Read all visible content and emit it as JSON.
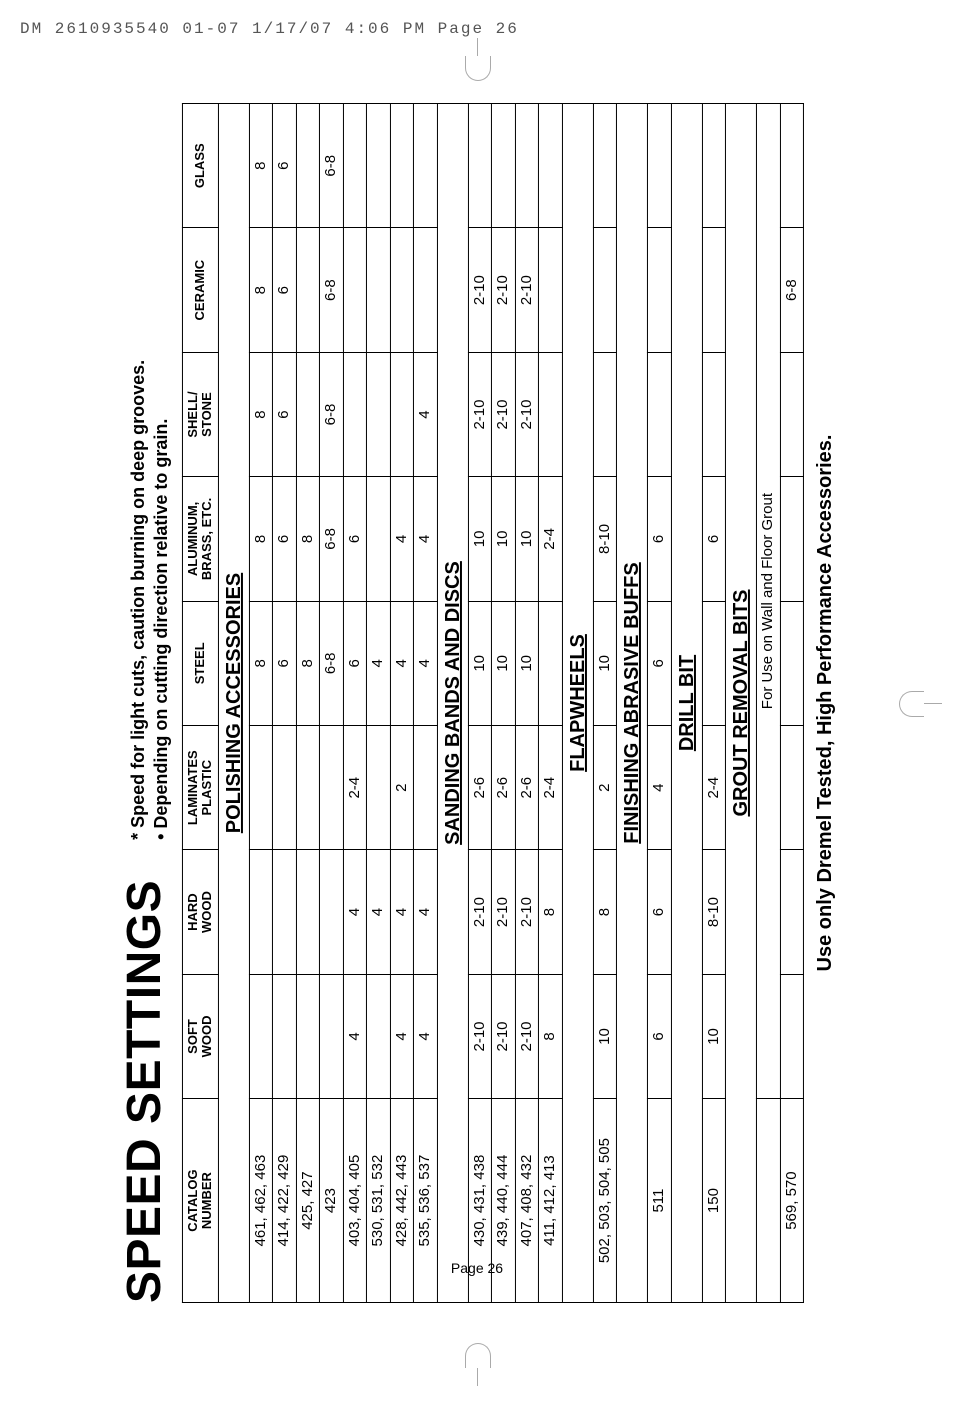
{
  "header": {
    "left": "DM 2610935540 01-07  1/17/07  4:06 PM  Page 26",
    "page_label": "Page 26"
  },
  "title": "SPEED SETTINGS",
  "subtitle_line1": "* Speed for light cuts, caution burning on deep grooves.",
  "subtitle_line2": "• Depending on cutting direction relative to grain.",
  "columns": {
    "catalog": "CATALOG\nNUMBER",
    "soft": "SOFT\nWOOD",
    "hard": "HARD\nWOOD",
    "lam": "LAMINATES\nPLASTIC",
    "steel": "STEEL",
    "alum": "ALUMINUM,\nBRASS, ETC.",
    "shell": "SHELL/\nSTONE",
    "ceramic": "CERAMIC",
    "glass": "GLASS"
  },
  "sections": {
    "polishing": "POLISHING ACCESSORIES",
    "sanding": "SANDING BANDS AND DISCS",
    "flap": "FLAPWHEELS",
    "finishing": "FINISHING ABRASIVE BUFFS",
    "drill": "DRILL BIT",
    "grout": "GROUT REMOVAL BITS"
  },
  "rows": {
    "polishing": [
      {
        "catalog": "461, 462, 463",
        "steel": "8",
        "alum": "8",
        "shell": "8",
        "ceramic": "8",
        "glass": "8"
      },
      {
        "catalog": "414, 422, 429",
        "steel": "6",
        "alum": "6",
        "shell": "6",
        "ceramic": "6",
        "glass": "6"
      },
      {
        "catalog": "425, 427",
        "steel": "8",
        "alum": "8"
      },
      {
        "catalog": "423",
        "steel": "6-8",
        "alum": "6-8",
        "shell": "6-8",
        "ceramic": "6-8",
        "glass": "6-8"
      },
      {
        "catalog": "403, 404, 405",
        "soft": "4",
        "hard": "4",
        "lam": "2-4",
        "steel": "6",
        "alum": "6"
      },
      {
        "catalog": "530, 531, 532",
        "hard": "4",
        "steel": "4"
      },
      {
        "catalog": "428, 442, 443",
        "soft": "4",
        "hard": "4",
        "lam": "2",
        "steel": "4",
        "alum": "4"
      },
      {
        "catalog": "535, 536, 537",
        "soft": "4",
        "hard": "4",
        "steel": "4",
        "alum": "4",
        "shell": "4"
      }
    ],
    "sanding": [
      {
        "catalog": "430, 431, 438",
        "soft": "2-10",
        "hard": "2-10",
        "lam": "2-6",
        "steel": "10",
        "alum": "10",
        "shell": "2-10",
        "ceramic": "2-10"
      },
      {
        "catalog": "439, 440, 444",
        "soft": "2-10",
        "hard": "2-10",
        "lam": "2-6",
        "steel": "10",
        "alum": "10",
        "shell": "2-10",
        "ceramic": "2-10"
      },
      {
        "catalog": "407, 408, 432",
        "soft": "2-10",
        "hard": "2-10",
        "lam": "2-6",
        "steel": "10",
        "alum": "10",
        "shell": "2-10",
        "ceramic": "2-10"
      },
      {
        "catalog": "411, 412, 413",
        "soft": "8",
        "hard": "8",
        "lam": "2-4",
        "alum": "2-4"
      }
    ],
    "flap": [
      {
        "catalog": "502, 503, 504, 505",
        "soft": "10",
        "hard": "8",
        "lam": "2",
        "steel": "10",
        "alum": "8-10"
      }
    ],
    "finishing": [
      {
        "catalog": "511",
        "soft": "6",
        "hard": "6",
        "lam": "4",
        "steel": "6",
        "alum": "6"
      }
    ],
    "drill": [
      {
        "catalog": "150",
        "soft": "10",
        "hard": "8-10",
        "lam": "2-4",
        "alum": "6"
      }
    ],
    "grout": [
      {
        "catalog": "",
        "note_span": "For Use on Wall and Floor Grout"
      },
      {
        "catalog": "569, 570",
        "ceramic": "6-8"
      }
    ]
  },
  "footnote": "Use only Dremel Tested, High Performance Accessories."
}
